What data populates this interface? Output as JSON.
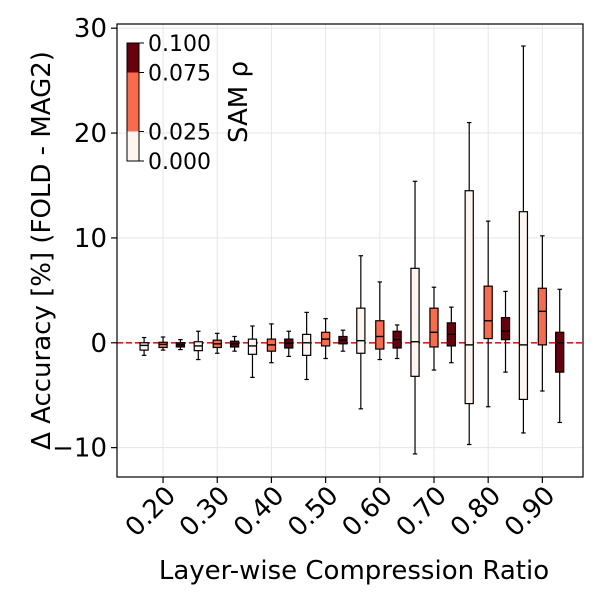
{
  "chart_data": {
    "type": "boxplot",
    "xlabel": "Layer-wise Compression Ratio",
    "ylabel": "Δ Accuracy [%] (FOLD - MAG2)",
    "ylim": [
      -12.8,
      30.4
    ],
    "yticks": [
      -10,
      0,
      10,
      20,
      30
    ],
    "ytick_labels": [
      "−10",
      "0",
      "10",
      "20",
      "30"
    ],
    "x_tick_labels": [
      "0.20",
      "0.30",
      "0.40",
      "0.50",
      "0.60",
      "0.70",
      "0.80",
      "0.90"
    ],
    "xlim": [
      0.115,
      0.975
    ],
    "grid": true,
    "reference_line": {
      "y": 0,
      "color": "#e41a1c",
      "style": "dashed"
    },
    "colorbar": {
      "label": "SAM ρ",
      "placement": "top-left",
      "levels": [
        0.0,
        0.025,
        0.075,
        0.1
      ],
      "tick_labels": [
        "0.000",
        "0.025",
        "0.075",
        "0.100"
      ],
      "colors": [
        "#fff5f0",
        "#fb6a4a",
        "#67000d"
      ]
    },
    "groups": [
      {
        "ratio": "0.20",
        "boxes": [
          {
            "rho": "0.000",
            "whisker_low": -1.2,
            "q1": -0.7,
            "median": -0.25,
            "q3": 0.0,
            "whisker_high": 0.5
          },
          {
            "rho": "0.025",
            "whisker_low": -0.7,
            "q1": -0.45,
            "median": -0.15,
            "q3": 0.05,
            "whisker_high": 0.55
          },
          {
            "rho": "0.100",
            "whisker_low": -0.65,
            "q1": -0.4,
            "median": -0.2,
            "q3": 0.0,
            "whisker_high": 0.3
          }
        ]
      },
      {
        "ratio": "0.30",
        "boxes": [
          {
            "rho": "0.000",
            "whisker_low": -1.6,
            "q1": -0.75,
            "median": -0.3,
            "q3": 0.1,
            "whisker_high": 1.1
          },
          {
            "rho": "0.025",
            "whisker_low": -1.0,
            "q1": -0.45,
            "median": -0.1,
            "q3": 0.25,
            "whisker_high": 0.9
          },
          {
            "rho": "0.100",
            "whisker_low": -0.8,
            "q1": -0.4,
            "median": -0.1,
            "q3": 0.15,
            "whisker_high": 0.6
          }
        ]
      },
      {
        "ratio": "0.40",
        "boxes": [
          {
            "rho": "0.000",
            "whisker_low": -3.3,
            "q1": -1.1,
            "median": -0.3,
            "q3": 0.35,
            "whisker_high": 1.6
          },
          {
            "rho": "0.025",
            "whisker_low": -1.9,
            "q1": -0.8,
            "median": -0.2,
            "q3": 0.35,
            "whisker_high": 1.8
          },
          {
            "rho": "0.100",
            "whisker_low": -1.3,
            "q1": -0.5,
            "median": -0.05,
            "q3": 0.35,
            "whisker_high": 1.1
          }
        ]
      },
      {
        "ratio": "0.50",
        "boxes": [
          {
            "rho": "0.000",
            "whisker_low": -3.5,
            "q1": -1.2,
            "median": 0.0,
            "q3": 0.8,
            "whisker_high": 2.9
          },
          {
            "rho": "0.025",
            "whisker_low": -1.5,
            "q1": -0.3,
            "median": 0.35,
            "q3": 1.0,
            "whisker_high": 2.3
          },
          {
            "rho": "0.100",
            "whisker_low": -0.8,
            "q1": -0.1,
            "median": 0.25,
            "q3": 0.6,
            "whisker_high": 1.2
          }
        ]
      },
      {
        "ratio": "0.60",
        "boxes": [
          {
            "rho": "0.000",
            "whisker_low": -6.3,
            "q1": -1.0,
            "median": 0.2,
            "q3": 3.3,
            "whisker_high": 8.3
          },
          {
            "rho": "0.025",
            "whisker_low": -1.6,
            "q1": -0.6,
            "median": 0.6,
            "q3": 2.1,
            "whisker_high": 5.8
          },
          {
            "rho": "0.100",
            "whisker_low": -1.5,
            "q1": -0.5,
            "median": 0.3,
            "q3": 1.1,
            "whisker_high": 1.7
          }
        ]
      },
      {
        "ratio": "0.70",
        "boxes": [
          {
            "rho": "0.000",
            "whisker_low": -10.6,
            "q1": -3.2,
            "median": 0.1,
            "q3": 7.1,
            "whisker_high": 15.4
          },
          {
            "rho": "0.025",
            "whisker_low": -2.6,
            "q1": -0.4,
            "median": 1.0,
            "q3": 3.3,
            "whisker_high": 5.3
          },
          {
            "rho": "0.100",
            "whisker_low": -1.9,
            "q1": -0.3,
            "median": 0.8,
            "q3": 1.9,
            "whisker_high": 3.4
          }
        ]
      },
      {
        "ratio": "0.80",
        "boxes": [
          {
            "rho": "0.000",
            "whisker_low": -9.7,
            "q1": -5.8,
            "median": -0.2,
            "q3": 14.5,
            "whisker_high": 21.0
          },
          {
            "rho": "0.025",
            "whisker_low": -6.1,
            "q1": 0.4,
            "median": 2.1,
            "q3": 5.4,
            "whisker_high": 11.6
          },
          {
            "rho": "0.100",
            "whisker_low": -2.8,
            "q1": 0.3,
            "median": 1.1,
            "q3": 2.4,
            "whisker_high": 4.9
          }
        ]
      },
      {
        "ratio": "0.90",
        "boxes": [
          {
            "rho": "0.000",
            "whisker_low": -8.6,
            "q1": -5.4,
            "median": -0.2,
            "q3": 12.5,
            "whisker_high": 28.3
          },
          {
            "rho": "0.025",
            "whisker_low": -4.6,
            "q1": -0.2,
            "median": 3.0,
            "q3": 5.2,
            "whisker_high": 10.2
          },
          {
            "rho": "0.100",
            "whisker_low": -7.6,
            "q1": -2.8,
            "median": 0.0,
            "q3": 1.0,
            "whisker_high": 5.1
          }
        ]
      }
    ]
  }
}
